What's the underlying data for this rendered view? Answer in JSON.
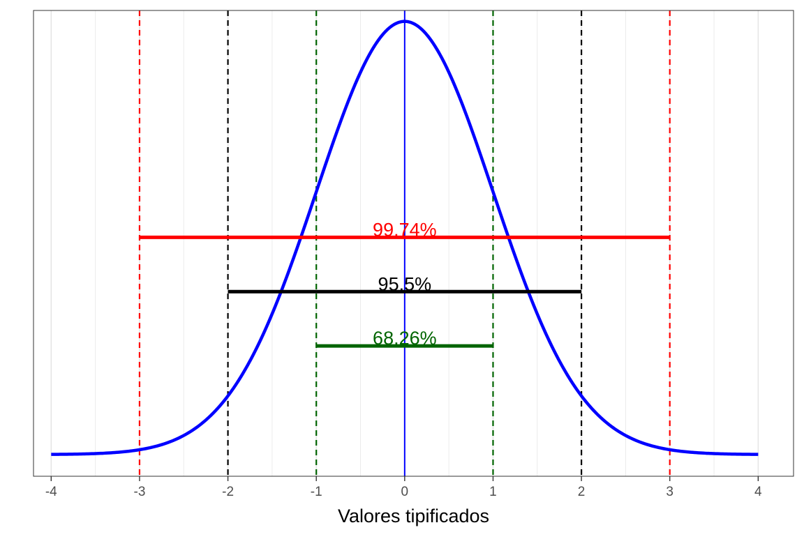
{
  "chart_data": {
    "type": "line",
    "title": "",
    "xlabel": "Valores tipificados",
    "ylabel": "",
    "xlim": [
      -4.2,
      4.4
    ],
    "ylim": [
      -0.02,
      0.409
    ],
    "x_ticks": [
      -4,
      -3,
      -2,
      -1,
      0,
      1,
      2,
      3,
      4
    ],
    "x_tick_labels": [
      "-4",
      "-3",
      "-2",
      "-1",
      "0",
      "1",
      "2",
      "3",
      "4"
    ],
    "y_axis_visible": false,
    "grid": {
      "major_x": [
        -4,
        -3,
        -2,
        -1,
        0,
        1,
        2,
        3,
        4
      ],
      "minor_x": [
        -3.5,
        -2.5,
        -1.5,
        -0.5,
        0.5,
        1.5,
        2.5,
        3.5
      ],
      "horizontal": false
    },
    "series": [
      {
        "curve": "standard normal density",
        "mean": 0,
        "sd": 1,
        "x_range": [
          -4,
          4
        ],
        "color": "#0000FF"
      }
    ],
    "mean_line": {
      "x": 0,
      "color": "#0000FF"
    },
    "reference_lines": [
      {
        "x": -3,
        "color": "#FF0000",
        "style": "dashed"
      },
      {
        "x": 3,
        "color": "#FF0000",
        "style": "dashed"
      },
      {
        "x": -2,
        "color": "#000000",
        "style": "dashed"
      },
      {
        "x": 2,
        "color": "#000000",
        "style": "dashed"
      },
      {
        "x": -1,
        "color": "#006400",
        "style": "dashed"
      },
      {
        "x": 1,
        "color": "#006400",
        "style": "dashed"
      }
    ],
    "intervals": [
      {
        "from": -3,
        "to": 3,
        "y": 0.2,
        "label": "99.74%",
        "color": "#FF0000"
      },
      {
        "from": -2,
        "to": 2,
        "y": 0.15,
        "label": "95.5%",
        "color": "#000000"
      },
      {
        "from": -1,
        "to": 1,
        "y": 0.1,
        "label": "68.26%",
        "color": "#006400"
      }
    ]
  }
}
